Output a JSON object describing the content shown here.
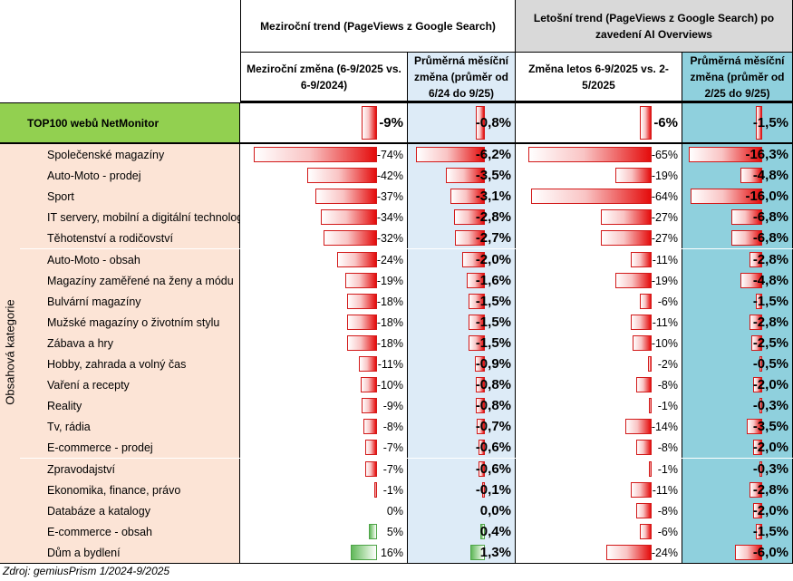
{
  "headers": {
    "group1": "Meziroční trend (PageViews z Google Search)",
    "group2": "Letošní trend (PageViews z Google Search) po zavedení AI Overviews",
    "col1": "Meziroční změna (6-9/2025 vs. 6-9/2024)",
    "col2": "Průměrná měsíční změna (průměr od 6/24 do 9/25)",
    "col3": "Změna letos  6-9/2025 vs. 2-5/2025",
    "col4": "Průměrná měsíční změna (průměr od 2/25 do 9/25)"
  },
  "top_row": {
    "label": "TOP100 webů NetMonitor",
    "c1": -9,
    "c1_text": "-9%",
    "c2": -0.8,
    "c2_text": "-0,8%",
    "c3": -6,
    "c3_text": "-6%",
    "c4": -1.5,
    "c4_text": "-1,5%"
  },
  "side_label": "Obsahová kategorie",
  "rows": [
    {
      "label": "Společenské magazíny",
      "c1": -74,
      "c1_text": "-74%",
      "c2": -6.2,
      "c2_text": "-6,2%",
      "c3": -65,
      "c3_text": "-65%",
      "c4": -16.3,
      "c4_text": "-16,3%"
    },
    {
      "label": "Auto-Moto - prodej",
      "c1": -42,
      "c1_text": "-42%",
      "c2": -3.5,
      "c2_text": "-3,5%",
      "c3": -19,
      "c3_text": "-19%",
      "c4": -4.8,
      "c4_text": "-4,8%"
    },
    {
      "label": "Sport",
      "c1": -37,
      "c1_text": "-37%",
      "c2": -3.1,
      "c2_text": "-3,1%",
      "c3": -64,
      "c3_text": "-64%",
      "c4": -16.0,
      "c4_text": "-16,0%"
    },
    {
      "label": "IT servery, mobilní a digitální technologie",
      "c1": -34,
      "c1_text": "-34%",
      "c2": -2.8,
      "c2_text": "-2,8%",
      "c3": -27,
      "c3_text": "-27%",
      "c4": -6.8,
      "c4_text": "-6,8%"
    },
    {
      "label": "Těhotenství a rodičovství",
      "c1": -32,
      "c1_text": "-32%",
      "c2": -2.7,
      "c2_text": "-2,7%",
      "c3": -27,
      "c3_text": "-27%",
      "c4": -6.8,
      "c4_text": "-6,8%"
    },
    {
      "label": "Auto-Moto - obsah",
      "c1": -24,
      "c1_text": "-24%",
      "c2": -2.0,
      "c2_text": "-2,0%",
      "c3": -11,
      "c3_text": "-11%",
      "c4": -2.8,
      "c4_text": "-2,8%"
    },
    {
      "label": "Magazíny zaměřené na ženy a módu",
      "c1": -19,
      "c1_text": "-19%",
      "c2": -1.6,
      "c2_text": "-1,6%",
      "c3": -19,
      "c3_text": "-19%",
      "c4": -4.8,
      "c4_text": "-4,8%"
    },
    {
      "label": "Bulvární magazíny",
      "c1": -18,
      "c1_text": "-18%",
      "c2": -1.5,
      "c2_text": "-1,5%",
      "c3": -6,
      "c3_text": "-6%",
      "c4": -1.5,
      "c4_text": "-1,5%"
    },
    {
      "label": "Mužské magazíny o životním stylu",
      "c1": -18,
      "c1_text": "-18%",
      "c2": -1.5,
      "c2_text": "-1,5%",
      "c3": -11,
      "c3_text": "-11%",
      "c4": -2.8,
      "c4_text": "-2,8%"
    },
    {
      "label": "Zábava a hry",
      "c1": -18,
      "c1_text": "-18%",
      "c2": -1.5,
      "c2_text": "-1,5%",
      "c3": -10,
      "c3_text": "-10%",
      "c4": -2.5,
      "c4_text": "-2,5%"
    },
    {
      "label": "Hobby, zahrada a volný čas",
      "c1": -11,
      "c1_text": "-11%",
      "c2": -0.9,
      "c2_text": "-0,9%",
      "c3": -2,
      "c3_text": "-2%",
      "c4": -0.5,
      "c4_text": "-0,5%"
    },
    {
      "label": "Vaření a recepty",
      "c1": -10,
      "c1_text": "-10%",
      "c2": -0.8,
      "c2_text": "-0,8%",
      "c3": -8,
      "c3_text": "-8%",
      "c4": -2.0,
      "c4_text": "-2,0%"
    },
    {
      "label": "Reality",
      "c1": -9,
      "c1_text": "-9%",
      "c2": -0.8,
      "c2_text": "-0,8%",
      "c3": -1,
      "c3_text": "-1%",
      "c4": -0.3,
      "c4_text": "-0,3%"
    },
    {
      "label": "Tv, rádia",
      "c1": -8,
      "c1_text": "-8%",
      "c2": -0.7,
      "c2_text": "-0,7%",
      "c3": -14,
      "c3_text": "-14%",
      "c4": -3.5,
      "c4_text": "-3,5%"
    },
    {
      "label": "E-commerce - prodej",
      "c1": -7,
      "c1_text": "-7%",
      "c2": -0.6,
      "c2_text": "-0,6%",
      "c3": -8,
      "c3_text": "-8%",
      "c4": -2.0,
      "c4_text": "-2,0%"
    },
    {
      "label": "Zpravodajství",
      "c1": -7,
      "c1_text": "-7%",
      "c2": -0.6,
      "c2_text": "-0,6%",
      "c3": -1,
      "c3_text": "-1%",
      "c4": -0.3,
      "c4_text": "-0,3%"
    },
    {
      "label": "Ekonomika, finance, právo",
      "c1": -1,
      "c1_text": "-1%",
      "c2": -0.1,
      "c2_text": "-0,1%",
      "c3": -11,
      "c3_text": "-11%",
      "c4": -2.8,
      "c4_text": "-2,8%"
    },
    {
      "label": "Databáze a katalogy",
      "c1": 0,
      "c1_text": "0%",
      "c2": 0.0,
      "c2_text": "0,0%",
      "c3": -8,
      "c3_text": "-8%",
      "c4": -2.0,
      "c4_text": "-2,0%"
    },
    {
      "label": "E-commerce - obsah",
      "c1": 5,
      "c1_text": "5%",
      "c2": 0.4,
      "c2_text": "0,4%",
      "c3": -6,
      "c3_text": "-6%",
      "c4": -1.5,
      "c4_text": "-1,5%"
    },
    {
      "label": "Dům a bydlení",
      "c1": 16,
      "c1_text": "16%",
      "c2": 1.3,
      "c2_text": "1,3%",
      "c3": -24,
      "c3_text": "-24%",
      "c4": -6.0,
      "c4_text": "-6,0%"
    }
  ],
  "source": "Zdroj: gemiusPrism 1/2024-9/2025",
  "colors": {
    "top_label_bg": "#92d050",
    "category_bg": "#fce4d6",
    "header_gray": "#d9d9d9",
    "col2_bg": "#ddebf7",
    "col4_bg": "#8fd0dd",
    "negative_bar": "#e40c0c",
    "positive_bar": "#61b85a"
  }
}
